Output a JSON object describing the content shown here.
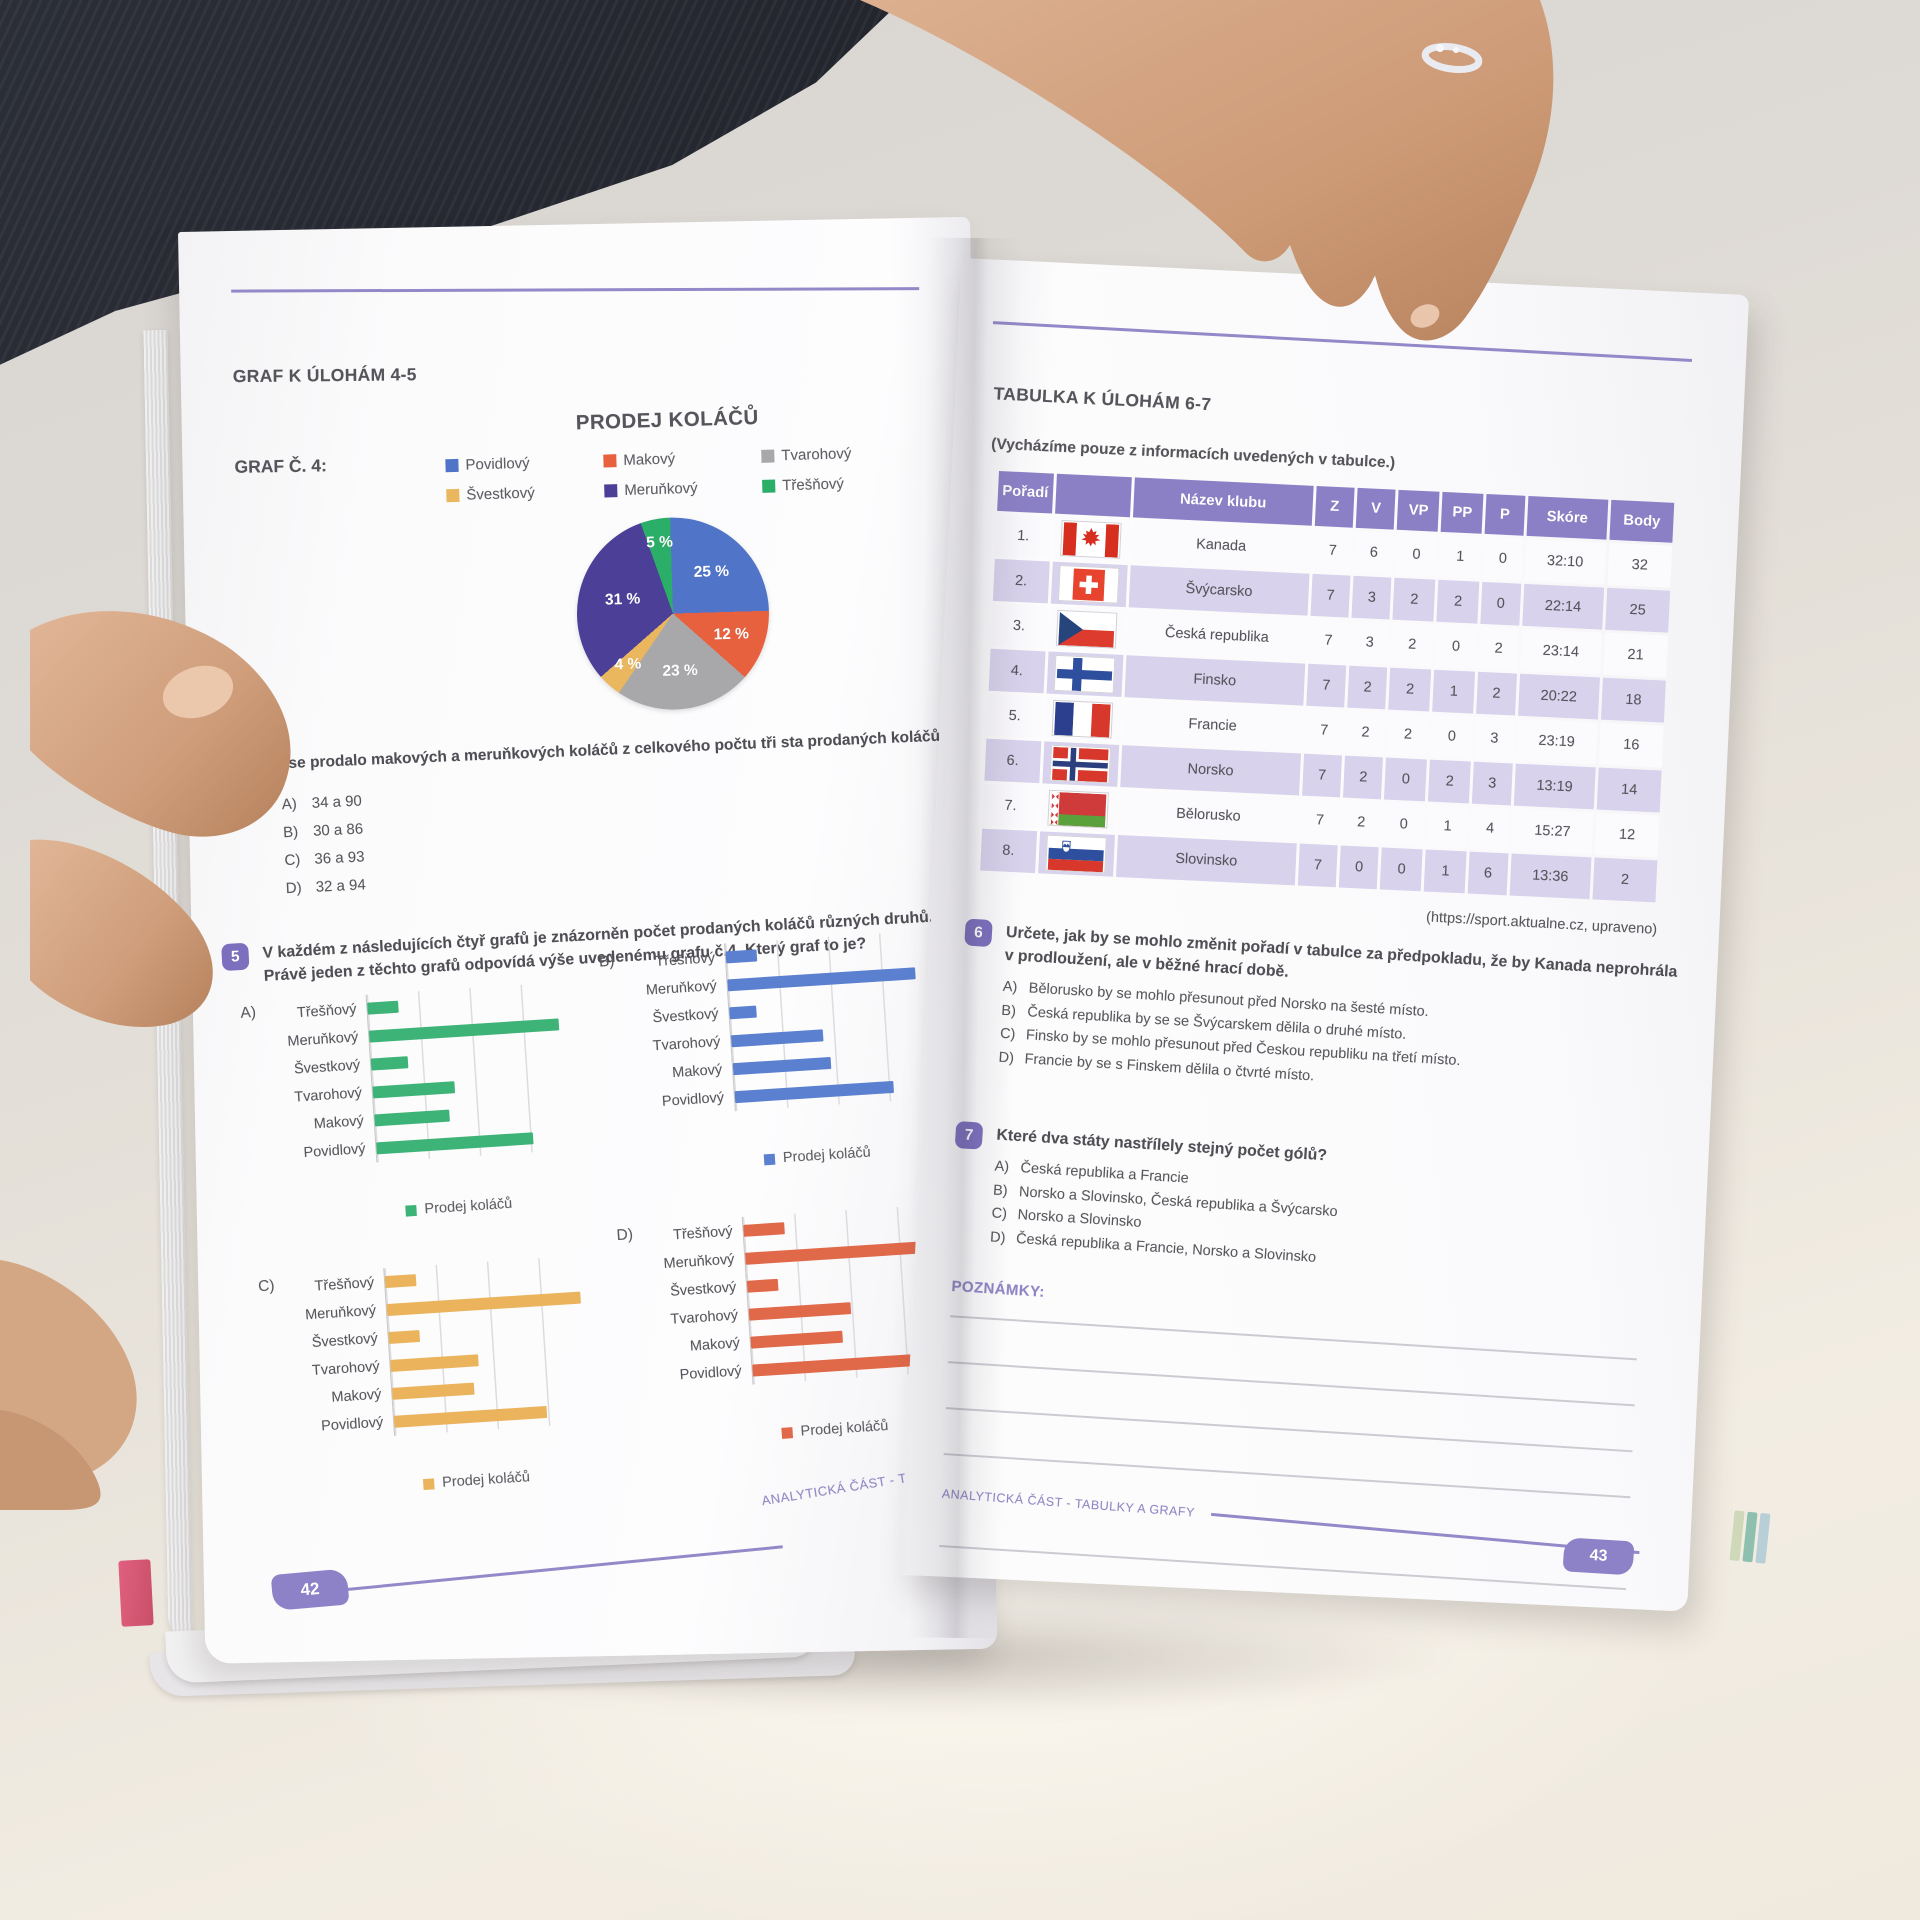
{
  "scene": {
    "accent_purple": "#8b80c7",
    "row_lavender": "#d8d2ec",
    "badge_purple": "#7b6fbe",
    "page_bg": "#fbfafc"
  },
  "left_page": {
    "kicker": "GRAF K ÚLOHÁM 4-5",
    "graf_label": "GRAF Č. 4:",
    "q4": {
      "text": "Kolik se prodalo makových a meruňkových koláčů z celkového počtu tři sta prodaných koláčů?",
      "answers": [
        {
          "letter": "A)",
          "text": "34 a 90"
        },
        {
          "letter": "B)",
          "text": "30 a 86"
        },
        {
          "letter": "C)",
          "text": "36 a 93"
        },
        {
          "letter": "D)",
          "text": "32 a 94"
        }
      ]
    },
    "q5": {
      "number": "5",
      "text": "V každém z následujících čtyř grafů je znázorněn počet prodaných koláčů různých druhů. Právě jeden z těchto grafů odpovídá výše uvedenému grafu č.4. Který graf to je?"
    },
    "footer": "ANALYTICKÁ ČÁST - TABULKY A GRAFY",
    "page_number": "42"
  },
  "right_page": {
    "kicker": "TABULKA K ÚLOHÁM 6-7",
    "note": "(Vycházíme pouze z informacích uvedených v tabulce.)",
    "table": {
      "columns": [
        "Pořadí",
        "",
        "Název klubu",
        "Z",
        "V",
        "VP",
        "PP",
        "P",
        "Skóre",
        "Body"
      ],
      "rows": [
        {
          "pos": "1.",
          "flag": "canada",
          "club": "Kanada",
          "z": "7",
          "v": "6",
          "vp": "0",
          "pp": "1",
          "p": "0",
          "score": "32:10",
          "body": "32"
        },
        {
          "pos": "2.",
          "flag": "switzerland",
          "club": "Švýcarsko",
          "z": "7",
          "v": "3",
          "vp": "2",
          "pp": "2",
          "p": "0",
          "score": "22:14",
          "body": "25"
        },
        {
          "pos": "3.",
          "flag": "czechia",
          "club": "Česká republika",
          "z": "7",
          "v": "3",
          "vp": "2",
          "pp": "0",
          "p": "2",
          "score": "23:14",
          "body": "21"
        },
        {
          "pos": "4.",
          "flag": "finland",
          "club": "Finsko",
          "z": "7",
          "v": "2",
          "vp": "2",
          "pp": "1",
          "p": "2",
          "score": "20:22",
          "body": "18"
        },
        {
          "pos": "5.",
          "flag": "france",
          "club": "Francie",
          "z": "7",
          "v": "2",
          "vp": "2",
          "pp": "0",
          "p": "3",
          "score": "23:19",
          "body": "16"
        },
        {
          "pos": "6.",
          "flag": "norway",
          "club": "Norsko",
          "z": "7",
          "v": "2",
          "vp": "0",
          "pp": "2",
          "p": "3",
          "score": "13:19",
          "body": "14"
        },
        {
          "pos": "7.",
          "flag": "belarus",
          "club": "Bělorusko",
          "z": "7",
          "v": "2",
          "vp": "0",
          "pp": "1",
          "p": "4",
          "score": "15:27",
          "body": "12"
        },
        {
          "pos": "8.",
          "flag": "slovenia",
          "club": "Slovinsko",
          "z": "7",
          "v": "0",
          "vp": "0",
          "pp": "1",
          "p": "6",
          "score": "13:36",
          "body": "2"
        }
      ]
    },
    "source": "(https://sport.aktualne.cz, upraveno)",
    "q6": {
      "number": "6",
      "text": "Určete, jak by se mohlo změnit pořadí v tabulce za předpokladu, že by Kanada neprohrála v prodloužení, ale v běžné hrací době.",
      "answers": [
        {
          "letter": "A)",
          "text": "Bělorusko by se mohlo přesunout před Norsko na šesté místo."
        },
        {
          "letter": "B)",
          "text": "Česká republika by se se Švýcarskem dělila o druhé místo."
        },
        {
          "letter": "C)",
          "text": "Finsko by se mohlo přesunout před Českou republiku na třetí místo."
        },
        {
          "letter": "D)",
          "text": "Francie by se s Finskem dělila o čtvrté místo."
        }
      ]
    },
    "q7": {
      "number": "7",
      "text": "Které dva státy nastřílely stejný počet gólů?",
      "answers": [
        {
          "letter": "A)",
          "text": "Česká republika a Francie"
        },
        {
          "letter": "B)",
          "text": "Norsko a Slovinsko, Česká republika a Švýcarsko"
        },
        {
          "letter": "C)",
          "text": "Norsko a Slovinsko"
        },
        {
          "letter": "D)",
          "text": "Česká republika a Francie, Norsko a Slovinsko"
        }
      ]
    },
    "notes_label": "POZNÁMKY:",
    "footer": "ANALYTICKÁ ČÁST - TABULKY A GRAFY",
    "page_number": "43"
  },
  "chart_data": [
    {
      "type": "pie",
      "title": "PRODEJ KOLÁČŮ",
      "labels": [
        "Povidlový",
        "Makový",
        "Tvarohový",
        "Švestkový",
        "Meruňkový",
        "Třešňový"
      ],
      "values": [
        25,
        12,
        23,
        4,
        31,
        5
      ],
      "unit": "%",
      "value_labels": [
        "25 %",
        "12 %",
        "23 %",
        "4 %",
        "31 %",
        "5 %"
      ],
      "colors": [
        "#4f74c8",
        "#e8613f",
        "#a8a8aa",
        "#eab75f",
        "#4b3f98",
        "#2aae68"
      ],
      "legend_position": "top"
    },
    {
      "type": "bar",
      "orientation": "horizontal",
      "letter": "A)",
      "legend": "Prodej koláčů",
      "color": "#3eb377",
      "grid": true,
      "xlim": [
        0,
        100
      ],
      "categories": [
        "Třešňový",
        "Meruňkový",
        "Švestkový",
        "Tvarohový",
        "Makový",
        "Povidlový"
      ],
      "values": [
        15,
        93,
        18,
        40,
        37,
        77
      ]
    },
    {
      "type": "bar",
      "orientation": "horizontal",
      "letter": "B)",
      "legend": "Prodej koláčů",
      "color": "#5b80d0",
      "grid": true,
      "xlim": [
        0,
        100
      ],
      "categories": [
        "Třešňový",
        "Meruňkový",
        "Švestkový",
        "Tvarohový",
        "Makový",
        "Povidlový"
      ],
      "values": [
        15,
        92,
        13,
        45,
        48,
        78
      ]
    },
    {
      "type": "bar",
      "orientation": "horizontal",
      "letter": "C)",
      "legend": "Prodej koláčů",
      "color": "#eab35c",
      "grid": true,
      "xlim": [
        0,
        100
      ],
      "categories": [
        "Třešňový",
        "Meruňkový",
        "Švestkový",
        "Tvarohový",
        "Makový",
        "Povidlový"
      ],
      "values": [
        15,
        95,
        15,
        43,
        40,
        75
      ]
    },
    {
      "type": "bar",
      "orientation": "horizontal",
      "letter": "D)",
      "legend": "Prodej koláčů",
      "color": "#e0694a",
      "grid": true,
      "xlim": [
        0,
        100
      ],
      "categories": [
        "Třešňový",
        "Meruňkový",
        "Švestkový",
        "Tvarohový",
        "Makový",
        "Povidlový"
      ],
      "values": [
        20,
        95,
        15,
        50,
        45,
        92
      ]
    }
  ]
}
